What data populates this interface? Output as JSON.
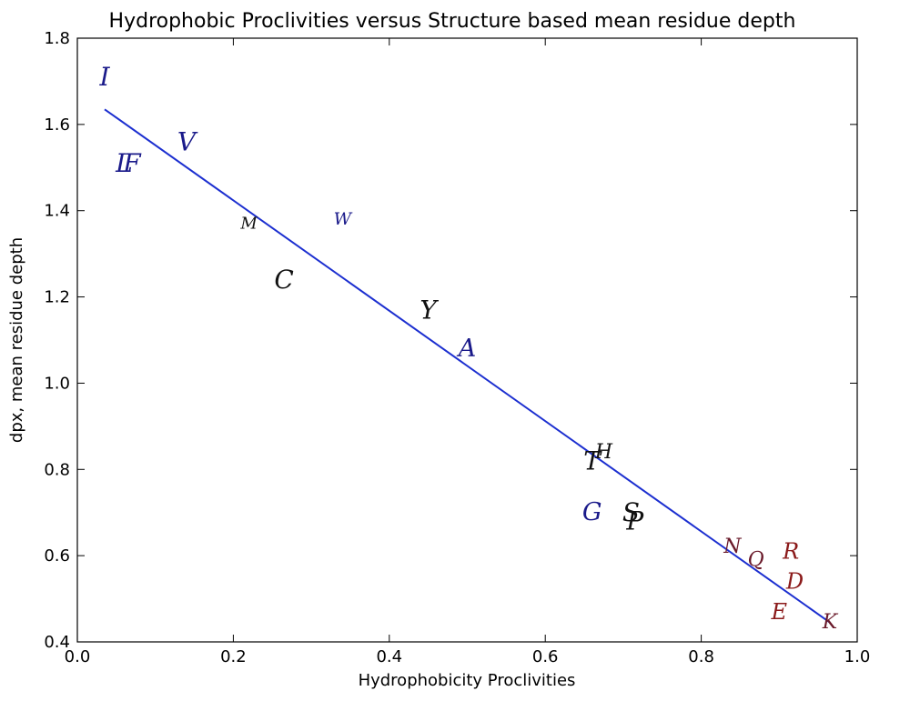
{
  "chart_data": {
    "type": "scatter",
    "title": "Hydrophobic Proclivities versus Structure based mean residue depth",
    "xlabel": "Hydrophobicity Proclivities",
    "ylabel": "dpx, mean residue depth",
    "xlim": [
      0.0,
      1.0
    ],
    "ylim": [
      0.4,
      1.8
    ],
    "xticks": [
      "0.0",
      "0.2",
      "0.4",
      "0.6",
      "0.8",
      "1.0"
    ],
    "yticks": [
      "0.4",
      "0.6",
      "0.8",
      "1.0",
      "1.2",
      "1.4",
      "1.6",
      "1.8"
    ],
    "grid": false,
    "points": [
      {
        "label": "I",
        "x": 0.035,
        "y": 1.71,
        "color": "#1a1a8a",
        "size": 28
      },
      {
        "label": "V",
        "x": 0.14,
        "y": 1.56,
        "color": "#1a1a8a",
        "size": 28
      },
      {
        "label": "L",
        "x": 0.06,
        "y": 1.51,
        "color": "#1a1a8a",
        "size": 28
      },
      {
        "label": "F",
        "x": 0.07,
        "y": 1.51,
        "color": "#1a1a8a",
        "size": 28
      },
      {
        "label": "M",
        "x": 0.22,
        "y": 1.37,
        "color": "#111111",
        "size": 18
      },
      {
        "label": "W",
        "x": 0.34,
        "y": 1.38,
        "color": "#1a1a8a",
        "size": 19
      },
      {
        "label": "C",
        "x": 0.265,
        "y": 1.24,
        "color": "#111111",
        "size": 28
      },
      {
        "label": "Y",
        "x": 0.45,
        "y": 1.17,
        "color": "#111111",
        "size": 28
      },
      {
        "label": "A",
        "x": 0.5,
        "y": 1.08,
        "color": "#1a1a8a",
        "size": 27
      },
      {
        "label": "H",
        "x": 0.675,
        "y": 0.84,
        "color": "#111111",
        "size": 22
      },
      {
        "label": "T",
        "x": 0.66,
        "y": 0.82,
        "color": "#111111",
        "size": 28
      },
      {
        "label": "G",
        "x": 0.66,
        "y": 0.7,
        "color": "#1a1a8a",
        "size": 27
      },
      {
        "label": "S",
        "x": 0.71,
        "y": 0.7,
        "color": "#111111",
        "size": 28
      },
      {
        "label": "P",
        "x": 0.715,
        "y": 0.68,
        "color": "#111111",
        "size": 28
      },
      {
        "label": "N",
        "x": 0.84,
        "y": 0.62,
        "color": "#6a1a2a",
        "size": 22
      },
      {
        "label": "R",
        "x": 0.915,
        "y": 0.61,
        "color": "#8b1a1a",
        "size": 24
      },
      {
        "label": "Q",
        "x": 0.87,
        "y": 0.59,
        "color": "#6a1a2a",
        "size": 22
      },
      {
        "label": "D",
        "x": 0.92,
        "y": 0.54,
        "color": "#8b1a1a",
        "size": 24
      },
      {
        "label": "E",
        "x": 0.9,
        "y": 0.47,
        "color": "#8b1a1a",
        "size": 24
      },
      {
        "label": "K",
        "x": 0.965,
        "y": 0.445,
        "color": "#6a1a2a",
        "size": 22
      }
    ],
    "fit_line": {
      "x": [
        0.035,
        0.965
      ],
      "y": [
        1.635,
        0.445
      ],
      "color": "#1c2fd0"
    }
  }
}
